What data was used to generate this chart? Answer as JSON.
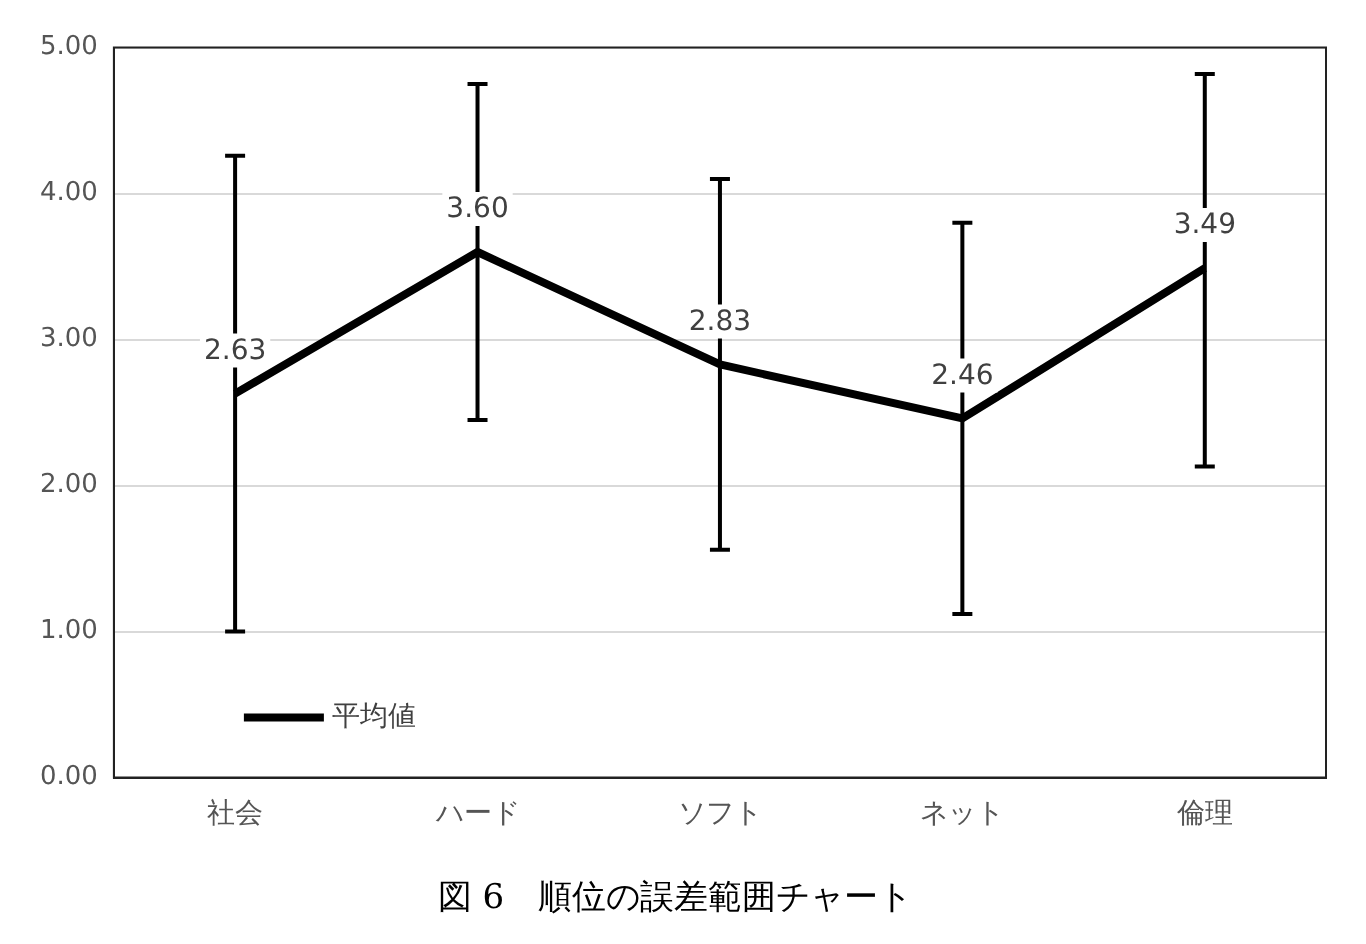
{
  "chart_data": {
    "type": "line",
    "title": "図 6　順位の誤差範囲チャート",
    "categories": [
      "社会",
      "ハード",
      "ソフト",
      "ネット",
      "倫理"
    ],
    "series": [
      {
        "name": "平均値",
        "color": "#000000",
        "values": [
          2.63,
          3.6,
          2.83,
          2.46,
          3.49
        ],
        "errors": [
          [
            1.0,
            4.26
          ],
          [
            2.45,
            4.75
          ],
          [
            1.56,
            4.1
          ],
          [
            1.12,
            3.8
          ],
          [
            2.13,
            4.82
          ]
        ],
        "value_labels": [
          "2.63",
          "3.60",
          "2.83",
          "2.46",
          "3.49"
        ]
      }
    ],
    "ylim": [
      0,
      5
    ],
    "yticks": [
      {
        "value": 0,
        "label": "0.00"
      },
      {
        "value": 1,
        "label": "1.00"
      },
      {
        "value": 2,
        "label": "2.00"
      },
      {
        "value": 3,
        "label": "3.00"
      },
      {
        "value": 4,
        "label": "4.00"
      },
      {
        "value": 5,
        "label": "5.00"
      }
    ],
    "grid": "y",
    "legend": "bottom left",
    "marker": "none",
    "line_style": "solid"
  }
}
